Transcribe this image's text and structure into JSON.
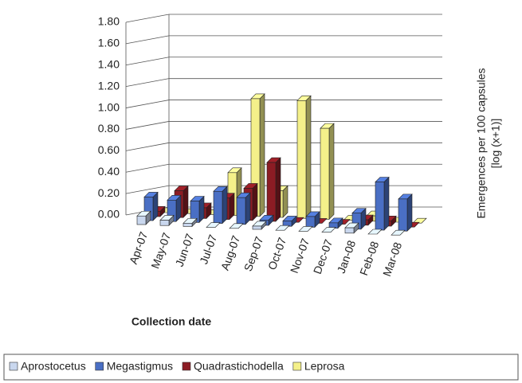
{
  "chart_data": {
    "type": "bar3d",
    "categories": [
      "Apr-07",
      "May-07",
      "Jun-07",
      "Jul-07",
      "Aug-07",
      "Sep-07",
      "Oct-07",
      "Nov-07",
      "Dec-07",
      "Jan-08",
      "Feb-08",
      "Mar-08"
    ],
    "series": [
      {
        "name": "Aprostocetus",
        "color": "#c9d7ee",
        "values": [
          0.08,
          0.05,
          0.03,
          0,
          0,
          0.03,
          0,
          0,
          0,
          0.05,
          0,
          0
        ]
      },
      {
        "name": "Megastigmus",
        "color": "#4a6fc4",
        "values": [
          0.22,
          0.2,
          0.2,
          0.3,
          0.25,
          0.05,
          0.05,
          0.1,
          0.05,
          0.15,
          0.45,
          0.3
        ]
      },
      {
        "name": "Quadrastichodella",
        "color": "#8c1c24",
        "values": [
          0.05,
          0.25,
          0.1,
          0.2,
          0.3,
          0.55,
          0,
          0,
          0,
          0.05,
          0.05,
          0
        ]
      },
      {
        "name": "Leprosa",
        "color": "#f4f08a",
        "values": [
          0,
          0,
          0,
          0.4,
          1.1,
          0.25,
          1.1,
          0.85,
          0,
          0.05,
          0,
          0
        ]
      }
    ],
    "ylim": [
      0,
      1.8
    ],
    "yticks": [
      {
        "value": 0,
        "label": "0.00"
      },
      {
        "value": 0.2,
        "label": "0.20"
      },
      {
        "value": 0.4,
        "label": "0.40"
      },
      {
        "value": 0.6,
        "label": "0.60"
      },
      {
        "value": 0.8,
        "label": "0.80"
      },
      {
        "value": 1,
        "label": "1.00"
      },
      {
        "value": 1.2,
        "label": "1.20"
      },
      {
        "value": 1.4,
        "label": "1.40"
      },
      {
        "value": 1.6,
        "label": "1.60"
      },
      {
        "value": 1.8,
        "label": "1.80"
      }
    ],
    "x_label": "Collection date",
    "y_label": [
      "Emergences per 100 capsules",
      "[log (x+1)]"
    ],
    "grid": true,
    "legend": "bottom"
  }
}
